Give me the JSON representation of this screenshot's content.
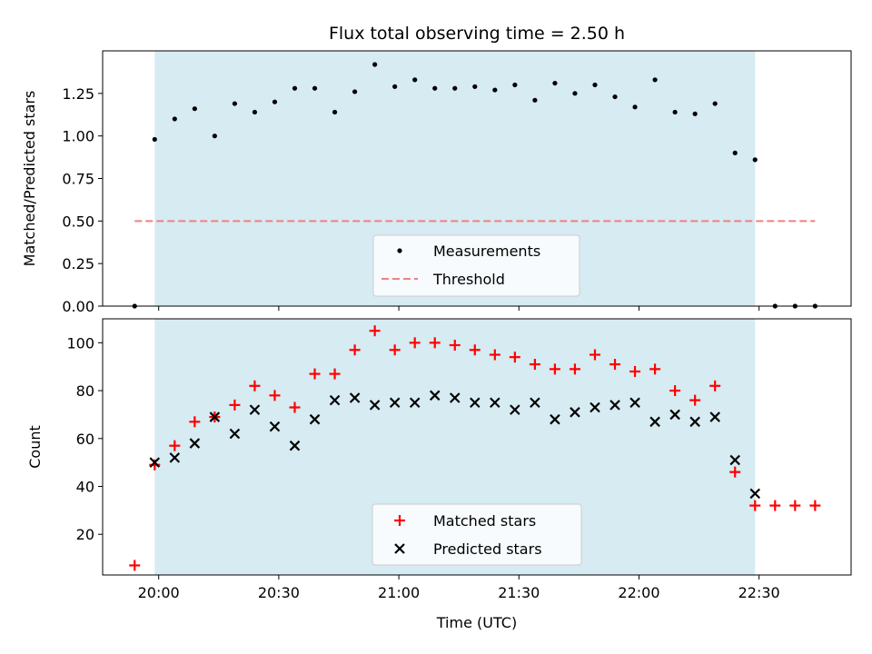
{
  "chart_data": [
    {
      "type": "scatter",
      "title": "Flux total observing time = 2.50 h",
      "ylabel": "Matched/Predicted stars",
      "ylim": [
        0,
        1.5
      ],
      "yticks": [
        0.0,
        0.25,
        0.5,
        0.75,
        1.0,
        1.25
      ],
      "ytick_labels": [
        "0.00",
        "0.25",
        "0.50",
        "0.75",
        "1.00",
        "1.25"
      ],
      "observing_window": [
        "19:59",
        "22:29"
      ],
      "threshold": {
        "name": "Threshold",
        "value": 0.5,
        "x_range": [
          "19:54",
          "22:44"
        ],
        "color": "#f08080"
      },
      "series": [
        {
          "name": "Measurements",
          "color": "#000000",
          "x": [
            "19:54",
            "19:59",
            "20:04",
            "20:09",
            "20:14",
            "20:19",
            "20:24",
            "20:29",
            "20:34",
            "20:39",
            "20:44",
            "20:49",
            "20:54",
            "20:59",
            "21:04",
            "21:09",
            "21:14",
            "21:19",
            "21:24",
            "21:29",
            "21:34",
            "21:39",
            "21:44",
            "21:49",
            "21:54",
            "21:59",
            "22:04",
            "22:09",
            "22:14",
            "22:19",
            "22:24",
            "22:29",
            "22:34",
            "22:39",
            "22:44"
          ],
          "y": [
            0.0,
            0.98,
            1.1,
            1.16,
            1.0,
            1.19,
            1.14,
            1.2,
            1.28,
            1.28,
            1.14,
            1.26,
            1.42,
            1.29,
            1.33,
            1.28,
            1.28,
            1.29,
            1.27,
            1.3,
            1.21,
            1.31,
            1.25,
            1.3,
            1.23,
            1.17,
            1.33,
            1.14,
            1.13,
            1.19,
            0.9,
            0.86,
            0.0,
            0.0,
            0.0
          ]
        }
      ],
      "legend": "lower-center"
    },
    {
      "type": "scatter",
      "xlabel": "Time (UTC)",
      "ylabel": "Count",
      "ylim": [
        3,
        110
      ],
      "yticks": [
        20,
        40,
        60,
        80,
        100
      ],
      "xlim": [
        "19:46",
        "22:53"
      ],
      "xticks": [
        "20:00",
        "20:30",
        "21:00",
        "21:30",
        "22:00",
        "22:30"
      ],
      "observing_window": [
        "19:59",
        "22:29"
      ],
      "series": [
        {
          "name": "Matched stars",
          "color": "#ff0000",
          "marker": "plus",
          "x": [
            "19:54",
            "19:59",
            "20:04",
            "20:09",
            "20:14",
            "20:19",
            "20:24",
            "20:29",
            "20:34",
            "20:39",
            "20:44",
            "20:49",
            "20:54",
            "20:59",
            "21:04",
            "21:09",
            "21:14",
            "21:19",
            "21:24",
            "21:29",
            "21:34",
            "21:39",
            "21:44",
            "21:49",
            "21:54",
            "21:59",
            "22:04",
            "22:09",
            "22:14",
            "22:19",
            "22:24",
            "22:29",
            "22:34",
            "22:39",
            "22:44"
          ],
          "y": [
            7,
            49,
            57,
            67,
            69,
            74,
            82,
            78,
            73,
            87,
            87,
            97,
            105,
            97,
            100,
            100,
            99,
            97,
            95,
            94,
            91,
            89,
            89,
            95,
            91,
            88,
            89,
            80,
            76,
            82,
            46,
            32,
            32,
            32,
            32
          ]
        },
        {
          "name": "Predicted stars",
          "color": "#000000",
          "marker": "x",
          "x": [
            "19:59",
            "20:04",
            "20:09",
            "20:14",
            "20:19",
            "20:24",
            "20:29",
            "20:34",
            "20:39",
            "20:44",
            "20:49",
            "20:54",
            "20:59",
            "21:04",
            "21:09",
            "21:14",
            "21:19",
            "21:24",
            "21:29",
            "21:34",
            "21:39",
            "21:44",
            "21:49",
            "21:54",
            "21:59",
            "22:04",
            "22:09",
            "22:14",
            "22:19",
            "22:24",
            "22:29"
          ],
          "y": [
            50,
            52,
            58,
            69,
            62,
            72,
            65,
            57,
            68,
            76,
            77,
            74,
            75,
            75,
            78,
            77,
            75,
            75,
            72,
            75,
            68,
            71,
            73,
            74,
            75,
            67,
            70,
            67,
            69,
            51,
            37
          ]
        }
      ],
      "legend": "lower-center"
    }
  ]
}
